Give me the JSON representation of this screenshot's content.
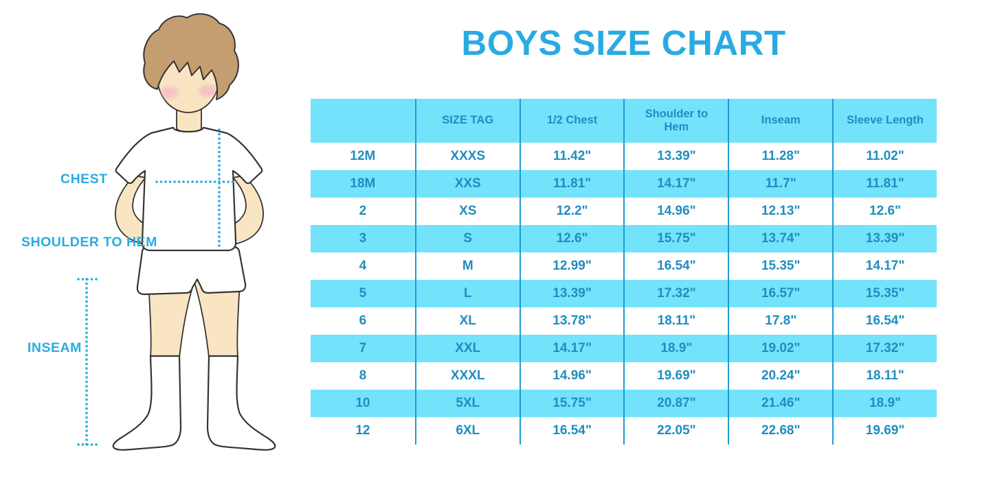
{
  "title": "BOYS SIZE CHART",
  "figure": {
    "labels": {
      "chest": "CHEST",
      "shoulder_to_hem": "SHOULDER TO HEM",
      "inseam": "INSEAM"
    }
  },
  "colors": {
    "accent_blue": "#29ABE2",
    "table_row_cyan": "#73E2FB",
    "table_divider": "#1D9BD2",
    "table_text": "#1F8DBF",
    "skin": "#FAE5C3",
    "hair": "#C49E71",
    "cheek": "#F2AFC3",
    "outline": "#333333"
  },
  "chart_data": {
    "type": "table",
    "title": "BOYS SIZE CHART",
    "columns": [
      "",
      "SIZE TAG",
      "1/2 Chest",
      "Shoulder to Hem",
      "Inseam",
      "Sleeve Length"
    ],
    "rows": [
      [
        "12M",
        "XXXS",
        "11.42\"",
        "13.39\"",
        "11.28\"",
        "11.02\""
      ],
      [
        "18M",
        "XXS",
        "11.81\"",
        "14.17\"",
        "11.7\"",
        "11.81\""
      ],
      [
        "2",
        "XS",
        "12.2\"",
        "14.96\"",
        "12.13\"",
        "12.6\""
      ],
      [
        "3",
        "S",
        "12.6\"",
        "15.75\"",
        "13.74\"",
        "13.39\""
      ],
      [
        "4",
        "M",
        "12.99\"",
        "16.54\"",
        "15.35\"",
        "14.17\""
      ],
      [
        "5",
        "L",
        "13.39\"",
        "17.32\"",
        "16.57\"",
        "15.35\""
      ],
      [
        "6",
        "XL",
        "13.78\"",
        "18.11\"",
        "17.8\"",
        "16.54\""
      ],
      [
        "7",
        "XXL",
        "14.17\"",
        "18.9\"",
        "19.02\"",
        "17.32\""
      ],
      [
        "8",
        "XXXL",
        "14.96\"",
        "19.69\"",
        "20.24\"",
        "18.11\""
      ],
      [
        "10",
        "5XL",
        "15.75\"",
        "20.87\"",
        "21.46\"",
        "18.9\""
      ],
      [
        "12",
        "6XL",
        "16.54\"",
        "22.05\"",
        "22.68\"",
        "19.69\""
      ]
    ],
    "stripe_pattern": "header cyan, then data rows alternate white / cyan starting with white",
    "legend_position": "none",
    "grid": "vertical column dividers only"
  }
}
